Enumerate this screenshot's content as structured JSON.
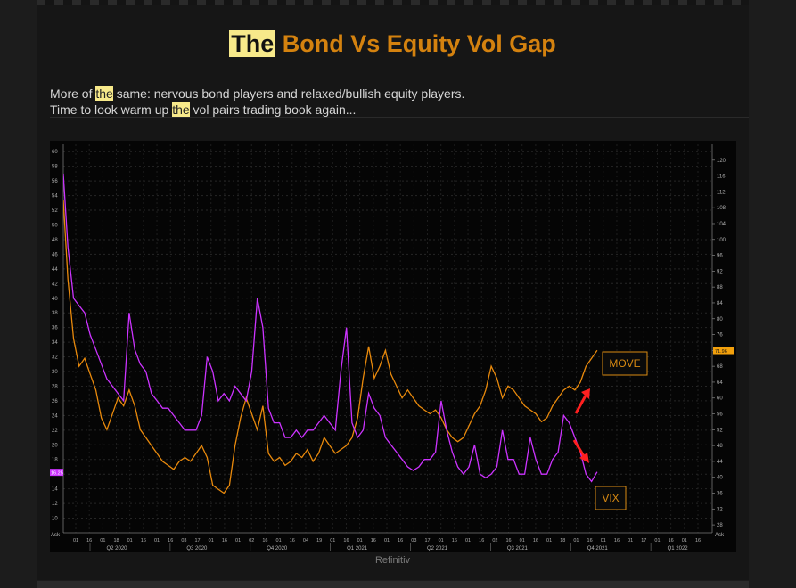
{
  "title": {
    "highlight": "The",
    "rest": " Bond Vs Equity Vol Gap"
  },
  "description": {
    "line1": {
      "pre": "More of ",
      "hl": "the",
      "post": " same: nervous bond players and relaxed/bullish equity players."
    },
    "line2": {
      "pre": "Time to look warm up ",
      "hl": "the",
      "post": " vol pairs trading book again..."
    }
  },
  "source": "Refinitiv",
  "colors": {
    "move": "#e8890c",
    "vix": "#cc33ff",
    "arrow": "#ff2020",
    "label_box": "#d98a12",
    "current_label": "#f2a00c"
  },
  "chart_data": {
    "type": "line",
    "title": "",
    "grid": true,
    "x_range": [
      "2020-04-01",
      "2022-03-01"
    ],
    "left_axis": {
      "series": "VIX",
      "range": [
        8,
        61
      ],
      "ticks": [
        10,
        12,
        14,
        16,
        18,
        20,
        22,
        24,
        26,
        28,
        30,
        32,
        34,
        36,
        38,
        40,
        42,
        44,
        46,
        48,
        50,
        52,
        54,
        56,
        58,
        60
      ],
      "unit_label": "Ask",
      "current_label": "16.25"
    },
    "right_axis": {
      "series": "MOVE",
      "range": [
        26,
        124
      ],
      "ticks": [
        28,
        32,
        36,
        40,
        44,
        48,
        52,
        56,
        60,
        64,
        68,
        72,
        76,
        80,
        84,
        88,
        92,
        96,
        100,
        104,
        108,
        112,
        116,
        120
      ],
      "unit_label": "Ask",
      "current_label": "71.96"
    },
    "quarters": [
      "Q2 2020",
      "Q3 2020",
      "Q4 2020",
      "Q1 2021",
      "Q2 2021",
      "Q3 2021",
      "Q4 2021",
      "Q1 2022"
    ],
    "day_ticks": [
      "01",
      "16",
      "01",
      "18",
      "01",
      "16",
      "01",
      "16",
      "03",
      "17",
      "01",
      "16",
      "01",
      "02",
      "16",
      "01",
      "16",
      "04",
      "19",
      "01",
      "16",
      "01",
      "16",
      "01",
      "16",
      "03",
      "17",
      "01",
      "16",
      "01",
      "16",
      "02",
      "16",
      "01",
      "16",
      "01",
      "18",
      "01",
      "16",
      "01",
      "16",
      "01",
      "17",
      "01",
      "16",
      "01",
      "16"
    ],
    "series": [
      {
        "name": "MOVE",
        "axis": "right",
        "points": [
          [
            "2020-04-01",
            110
          ],
          [
            "2020-04-06",
            90
          ],
          [
            "2020-04-12",
            75
          ],
          [
            "2020-04-18",
            68
          ],
          [
            "2020-04-24",
            70
          ],
          [
            "2020-04-30",
            66
          ],
          [
            "2020-05-06",
            62
          ],
          [
            "2020-05-12",
            55
          ],
          [
            "2020-05-18",
            52
          ],
          [
            "2020-05-24",
            56
          ],
          [
            "2020-05-30",
            60
          ],
          [
            "2020-06-05",
            58
          ],
          [
            "2020-06-11",
            62
          ],
          [
            "2020-06-17",
            58
          ],
          [
            "2020-06-23",
            52
          ],
          [
            "2020-06-29",
            50
          ],
          [
            "2020-07-05",
            48
          ],
          [
            "2020-07-11",
            46
          ],
          [
            "2020-07-17",
            44
          ],
          [
            "2020-07-23",
            43
          ],
          [
            "2020-07-29",
            42
          ],
          [
            "2020-08-04",
            44
          ],
          [
            "2020-08-10",
            45
          ],
          [
            "2020-08-16",
            44
          ],
          [
            "2020-08-22",
            46
          ],
          [
            "2020-08-28",
            48
          ],
          [
            "2020-09-03",
            45
          ],
          [
            "2020-09-09",
            38
          ],
          [
            "2020-09-15",
            37
          ],
          [
            "2020-09-21",
            36
          ],
          [
            "2020-09-27",
            38
          ],
          [
            "2020-10-03",
            48
          ],
          [
            "2020-10-09",
            55
          ],
          [
            "2020-10-15",
            60
          ],
          [
            "2020-10-21",
            56
          ],
          [
            "2020-10-27",
            52
          ],
          [
            "2020-11-02",
            58
          ],
          [
            "2020-11-08",
            46
          ],
          [
            "2020-11-14",
            44
          ],
          [
            "2020-11-20",
            45
          ],
          [
            "2020-11-26",
            43
          ],
          [
            "2020-12-02",
            44
          ],
          [
            "2020-12-08",
            46
          ],
          [
            "2020-12-14",
            45
          ],
          [
            "2020-12-20",
            47
          ],
          [
            "2020-12-26",
            44
          ],
          [
            "2021-01-01",
            46
          ],
          [
            "2021-01-07",
            50
          ],
          [
            "2021-01-13",
            48
          ],
          [
            "2021-01-19",
            46
          ],
          [
            "2021-01-25",
            47
          ],
          [
            "2021-01-31",
            48
          ],
          [
            "2021-02-06",
            50
          ],
          [
            "2021-02-12",
            55
          ],
          [
            "2021-02-18",
            65
          ],
          [
            "2021-02-24",
            73
          ],
          [
            "2021-03-02",
            65
          ],
          [
            "2021-03-08",
            68
          ],
          [
            "2021-03-14",
            72
          ],
          [
            "2021-03-20",
            66
          ],
          [
            "2021-03-26",
            63
          ],
          [
            "2021-04-01",
            60
          ],
          [
            "2021-04-07",
            62
          ],
          [
            "2021-04-13",
            60
          ],
          [
            "2021-04-19",
            58
          ],
          [
            "2021-04-25",
            57
          ],
          [
            "2021-05-01",
            56
          ],
          [
            "2021-05-07",
            57
          ],
          [
            "2021-05-13",
            55
          ],
          [
            "2021-05-19",
            52
          ],
          [
            "2021-05-25",
            50
          ],
          [
            "2021-05-31",
            49
          ],
          [
            "2021-06-06",
            50
          ],
          [
            "2021-06-12",
            53
          ],
          [
            "2021-06-18",
            56
          ],
          [
            "2021-06-24",
            58
          ],
          [
            "2021-06-30",
            62
          ],
          [
            "2021-07-06",
            68
          ],
          [
            "2021-07-12",
            65
          ],
          [
            "2021-07-18",
            60
          ],
          [
            "2021-07-24",
            63
          ],
          [
            "2021-07-30",
            62
          ],
          [
            "2021-08-05",
            60
          ],
          [
            "2021-08-11",
            58
          ],
          [
            "2021-08-17",
            57
          ],
          [
            "2021-08-23",
            56
          ],
          [
            "2021-08-29",
            54
          ],
          [
            "2021-09-04",
            55
          ],
          [
            "2021-09-10",
            58
          ],
          [
            "2021-09-16",
            60
          ],
          [
            "2021-09-22",
            62
          ],
          [
            "2021-09-28",
            63
          ],
          [
            "2021-10-04",
            62
          ],
          [
            "2021-10-10",
            64
          ],
          [
            "2021-10-16",
            68
          ],
          [
            "2021-10-22",
            70
          ],
          [
            "2021-10-28",
            72
          ]
        ]
      },
      {
        "name": "VIX",
        "axis": "left",
        "points": [
          [
            "2020-04-01",
            57
          ],
          [
            "2020-04-06",
            47
          ],
          [
            "2020-04-12",
            40
          ],
          [
            "2020-04-18",
            39
          ],
          [
            "2020-04-24",
            38
          ],
          [
            "2020-04-30",
            35
          ],
          [
            "2020-05-06",
            33
          ],
          [
            "2020-05-12",
            31
          ],
          [
            "2020-05-18",
            29
          ],
          [
            "2020-05-24",
            28
          ],
          [
            "2020-05-30",
            27
          ],
          [
            "2020-06-05",
            26
          ],
          [
            "2020-06-11",
            38
          ],
          [
            "2020-06-17",
            33
          ],
          [
            "2020-06-23",
            31
          ],
          [
            "2020-06-29",
            30
          ],
          [
            "2020-07-05",
            27
          ],
          [
            "2020-07-11",
            26
          ],
          [
            "2020-07-17",
            25
          ],
          [
            "2020-07-23",
            25
          ],
          [
            "2020-07-29",
            24
          ],
          [
            "2020-08-04",
            23
          ],
          [
            "2020-08-10",
            22
          ],
          [
            "2020-08-16",
            22
          ],
          [
            "2020-08-22",
            22
          ],
          [
            "2020-08-28",
            24
          ],
          [
            "2020-09-03",
            32
          ],
          [
            "2020-09-09",
            30
          ],
          [
            "2020-09-15",
            26
          ],
          [
            "2020-09-21",
            27
          ],
          [
            "2020-09-27",
            26
          ],
          [
            "2020-10-03",
            28
          ],
          [
            "2020-10-09",
            27
          ],
          [
            "2020-10-15",
            26
          ],
          [
            "2020-10-21",
            30
          ],
          [
            "2020-10-27",
            40
          ],
          [
            "2020-11-02",
            36
          ],
          [
            "2020-11-08",
            25
          ],
          [
            "2020-11-14",
            23
          ],
          [
            "2020-11-20",
            23
          ],
          [
            "2020-11-26",
            21
          ],
          [
            "2020-12-02",
            21
          ],
          [
            "2020-12-08",
            22
          ],
          [
            "2020-12-14",
            21
          ],
          [
            "2020-12-20",
            22
          ],
          [
            "2020-12-26",
            22
          ],
          [
            "2021-01-01",
            23
          ],
          [
            "2021-01-07",
            24
          ],
          [
            "2021-01-13",
            23
          ],
          [
            "2021-01-19",
            22
          ],
          [
            "2021-01-25",
            30
          ],
          [
            "2021-01-31",
            36
          ],
          [
            "2021-02-06",
            23
          ],
          [
            "2021-02-12",
            21
          ],
          [
            "2021-02-18",
            22
          ],
          [
            "2021-02-24",
            27
          ],
          [
            "2021-03-02",
            25
          ],
          [
            "2021-03-08",
            24
          ],
          [
            "2021-03-14",
            21
          ],
          [
            "2021-03-20",
            20
          ],
          [
            "2021-03-26",
            19
          ],
          [
            "2021-04-01",
            18
          ],
          [
            "2021-04-07",
            17
          ],
          [
            "2021-04-13",
            16.5
          ],
          [
            "2021-04-19",
            17
          ],
          [
            "2021-04-25",
            18
          ],
          [
            "2021-05-01",
            18
          ],
          [
            "2021-05-07",
            19
          ],
          [
            "2021-05-13",
            26
          ],
          [
            "2021-05-19",
            22
          ],
          [
            "2021-05-25",
            19
          ],
          [
            "2021-05-31",
            17
          ],
          [
            "2021-06-06",
            16
          ],
          [
            "2021-06-12",
            17
          ],
          [
            "2021-06-18",
            20
          ],
          [
            "2021-06-24",
            16
          ],
          [
            "2021-06-30",
            15.5
          ],
          [
            "2021-07-06",
            16
          ],
          [
            "2021-07-12",
            17
          ],
          [
            "2021-07-18",
            22
          ],
          [
            "2021-07-24",
            18
          ],
          [
            "2021-07-30",
            18
          ],
          [
            "2021-08-05",
            16
          ],
          [
            "2021-08-11",
            16
          ],
          [
            "2021-08-17",
            21
          ],
          [
            "2021-08-23",
            18
          ],
          [
            "2021-08-29",
            16
          ],
          [
            "2021-09-04",
            16
          ],
          [
            "2021-09-10",
            18
          ],
          [
            "2021-09-16",
            19
          ],
          [
            "2021-09-22",
            24
          ],
          [
            "2021-09-28",
            23
          ],
          [
            "2021-10-04",
            21
          ],
          [
            "2021-10-10",
            19
          ],
          [
            "2021-10-16",
            16
          ],
          [
            "2021-10-22",
            15
          ],
          [
            "2021-10-28",
            16.3
          ]
        ]
      }
    ],
    "annotations": [
      {
        "text": "MOVE",
        "kind": "boxed-label"
      },
      {
        "text": "VIX",
        "kind": "boxed-label"
      },
      {
        "kind": "arrow",
        "direction": "up",
        "series": "MOVE"
      },
      {
        "kind": "arrow",
        "direction": "down",
        "series": "VIX"
      }
    ]
  }
}
